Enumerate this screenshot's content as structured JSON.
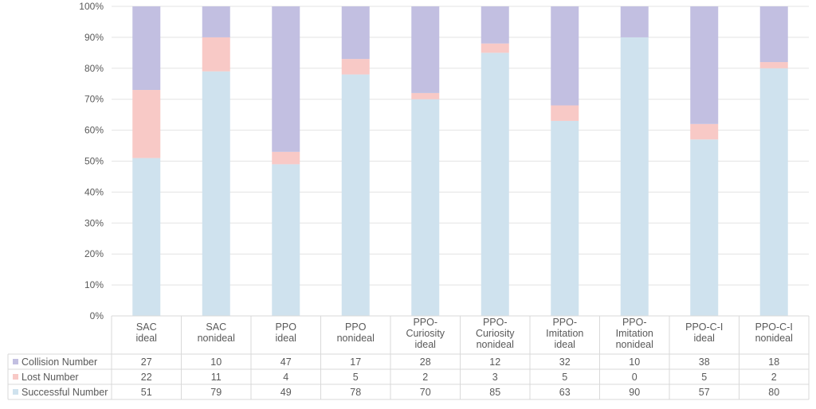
{
  "chart_data": {
    "type": "bar",
    "stacked": "percent",
    "categories": [
      [
        "SAC",
        "ideal"
      ],
      [
        "SAC",
        "nonideal"
      ],
      [
        "PPO",
        "ideal"
      ],
      [
        "PPO",
        "nonideal"
      ],
      [
        "PPO-",
        "Curiosity",
        "ideal"
      ],
      [
        "PPO-",
        "Curiosity",
        "nonideal"
      ],
      [
        "PPO-",
        "Imitation",
        "ideal"
      ],
      [
        "PPO-",
        "Imitation",
        "nonideal"
      ],
      [
        "PPO-C-I",
        "ideal"
      ],
      [
        "PPO-C-I",
        "nonideal"
      ]
    ],
    "series": [
      {
        "name": "Successful Number",
        "color": "#cfe2ee",
        "values": [
          51,
          79,
          49,
          78,
          70,
          85,
          63,
          90,
          57,
          80
        ]
      },
      {
        "name": "Lost Number",
        "color": "#f8c9c6",
        "values": [
          22,
          11,
          4,
          5,
          2,
          3,
          5,
          0,
          5,
          2
        ]
      },
      {
        "name": "Collision Number",
        "color": "#c2bfe1",
        "values": [
          27,
          10,
          47,
          17,
          28,
          12,
          32,
          10,
          38,
          18
        ]
      }
    ],
    "table_row_order": [
      "Collision Number",
      "Lost Number",
      "Successful Number"
    ],
    "y_ticks": [
      "0%",
      "10%",
      "20%",
      "30%",
      "40%",
      "50%",
      "60%",
      "70%",
      "80%",
      "90%",
      "100%"
    ],
    "ylim": [
      0,
      100
    ],
    "grid": true,
    "legend": "data-table"
  }
}
